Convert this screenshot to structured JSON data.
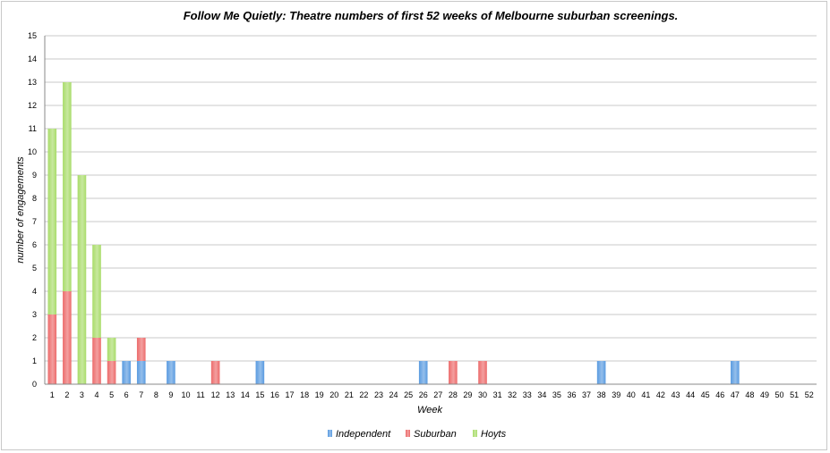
{
  "chart_data": {
    "type": "bar",
    "stacked": true,
    "title": "Follow Me Quietly: Theatre numbers of first 52 weeks of Melbourne suburban screenings.",
    "xlabel": "Week",
    "ylabel": "number of engagements",
    "ylim": [
      0,
      15
    ],
    "ytick_step": 1,
    "grid": true,
    "legend_position": "bottom",
    "categories": [
      "1",
      "2",
      "3",
      "4",
      "5",
      "6",
      "7",
      "8",
      "9",
      "10",
      "11",
      "12",
      "13",
      "14",
      "15",
      "16",
      "17",
      "18",
      "19",
      "20",
      "21",
      "22",
      "23",
      "24",
      "25",
      "26",
      "27",
      "28",
      "29",
      "30",
      "31",
      "32",
      "33",
      "34",
      "35",
      "36",
      "37",
      "38",
      "39",
      "40",
      "41",
      "42",
      "43",
      "44",
      "45",
      "46",
      "47",
      "48",
      "49",
      "50",
      "51",
      "52"
    ],
    "series": [
      {
        "name": "Independent",
        "color": "#5a9be0",
        "values": [
          0,
          0,
          0,
          0,
          0,
          1,
          1,
          0,
          1,
          0,
          0,
          0,
          0,
          0,
          1,
          0,
          0,
          0,
          0,
          0,
          0,
          0,
          0,
          0,
          0,
          1,
          0,
          0,
          0,
          0,
          0,
          0,
          0,
          0,
          0,
          0,
          0,
          1,
          0,
          0,
          0,
          0,
          0,
          0,
          0,
          0,
          1,
          0,
          0,
          0,
          0,
          0
        ]
      },
      {
        "name": "Suburban",
        "color": "#ec6b6b",
        "values": [
          3,
          4,
          0,
          2,
          1,
          0,
          1,
          0,
          0,
          0,
          0,
          1,
          0,
          0,
          0,
          0,
          0,
          0,
          0,
          0,
          0,
          0,
          0,
          0,
          0,
          0,
          0,
          1,
          0,
          1,
          0,
          0,
          0,
          0,
          0,
          0,
          0,
          0,
          0,
          0,
          0,
          0,
          0,
          0,
          0,
          0,
          0,
          0,
          0,
          0,
          0,
          0
        ]
      },
      {
        "name": "Hoyts",
        "color": "#a9dc6a",
        "values": [
          8,
          9,
          9,
          4,
          1,
          0,
          0,
          0,
          0,
          0,
          0,
          0,
          0,
          0,
          0,
          0,
          0,
          0,
          0,
          0,
          0,
          0,
          0,
          0,
          0,
          0,
          0,
          0,
          0,
          0,
          0,
          0,
          0,
          0,
          0,
          0,
          0,
          0,
          0,
          0,
          0,
          0,
          0,
          0,
          0,
          0,
          0,
          0,
          0,
          0,
          0,
          0
        ]
      }
    ]
  }
}
